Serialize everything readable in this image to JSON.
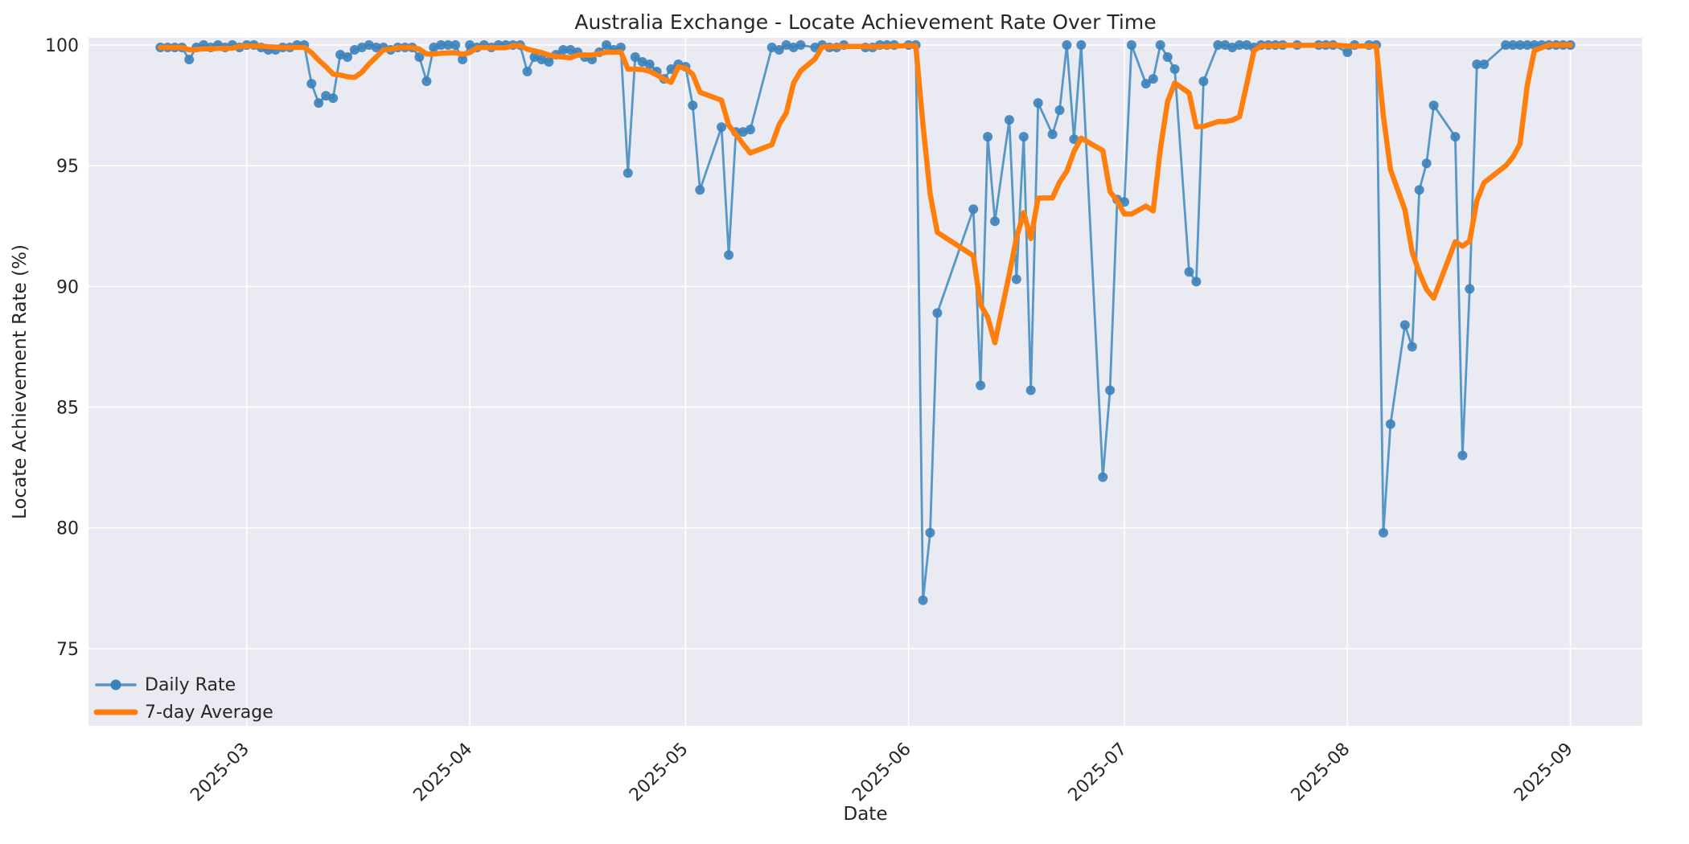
{
  "title": "Australia Exchange - Locate Achievement Rate Over Time",
  "axes": {
    "xlabel": "Date",
    "ylabel": "Locate Achievement Rate (%)"
  },
  "legend": {
    "position": "lower left",
    "items": [
      {
        "label": "Daily Rate",
        "swatch": "line-with-marker"
      },
      {
        "label": "7-day Average",
        "swatch": "thick-line"
      }
    ]
  },
  "colors": {
    "daily_line": "rgba(31,119,180,0.72)",
    "daily_marker": "#3c82ba",
    "legend_daily": "#5593c8",
    "average_line": "#ff7f0e",
    "axes_background": "#eaeaf2",
    "grid": "#ffffff",
    "text": "#262626"
  },
  "chart_data": {
    "type": "line",
    "title": "Australia Exchange - Locate Achievement Rate Over Time",
    "xlabel": "Date",
    "ylabel": "Locate Achievement Rate (%)",
    "grid": true,
    "legend_position": "lower left",
    "x_ticks": [
      {
        "date": "2025-03-01",
        "label": "2025-03"
      },
      {
        "date": "2025-04-01",
        "label": "2025-04"
      },
      {
        "date": "2025-05-01",
        "label": "2025-05"
      },
      {
        "date": "2025-06-01",
        "label": "2025-06"
      },
      {
        "date": "2025-07-01",
        "label": "2025-07"
      },
      {
        "date": "2025-08-01",
        "label": "2025-08"
      },
      {
        "date": "2025-09-01",
        "label": "2025-09"
      }
    ],
    "y_ticks": [
      75,
      80,
      85,
      90,
      95,
      100
    ],
    "ylim": [
      71.8,
      100.3
    ],
    "xlim": [
      "2025-02-07",
      "2025-09-11"
    ],
    "rolling_window": 7,
    "series": [
      {
        "name": "Daily Rate",
        "style": "line+markers",
        "points": [
          [
            "2025-02-17",
            99.9
          ],
          [
            "2025-02-18",
            99.9
          ],
          [
            "2025-02-19",
            99.9
          ],
          [
            "2025-02-20",
            99.9
          ],
          [
            "2025-02-21",
            99.4
          ],
          [
            "2025-02-22",
            99.9
          ],
          [
            "2025-02-23",
            100
          ],
          [
            "2025-02-24",
            99.9
          ],
          [
            "2025-02-25",
            100
          ],
          [
            "2025-02-26",
            99.9
          ],
          [
            "2025-02-27",
            100
          ],
          [
            "2025-02-28",
            99.9
          ],
          [
            "2025-03-01",
            100
          ],
          [
            "2025-03-02",
            100
          ],
          [
            "2025-03-03",
            99.9
          ],
          [
            "2025-03-04",
            99.8
          ],
          [
            "2025-03-05",
            99.8
          ],
          [
            "2025-03-06",
            99.9
          ],
          [
            "2025-03-07",
            99.9
          ],
          [
            "2025-03-08",
            100
          ],
          [
            "2025-03-09",
            100
          ],
          [
            "2025-03-10",
            98.4
          ],
          [
            "2025-03-11",
            97.6
          ],
          [
            "2025-03-12",
            97.9
          ],
          [
            "2025-03-13",
            97.8
          ],
          [
            "2025-03-14",
            99.6
          ],
          [
            "2025-03-15",
            99.5
          ],
          [
            "2025-03-16",
            99.8
          ],
          [
            "2025-03-17",
            99.9
          ],
          [
            "2025-03-18",
            100
          ],
          [
            "2025-03-19",
            99.9
          ],
          [
            "2025-03-20",
            99.9
          ],
          [
            "2025-03-21",
            99.8
          ],
          [
            "2025-03-22",
            99.9
          ],
          [
            "2025-03-23",
            99.9
          ],
          [
            "2025-03-24",
            99.9
          ],
          [
            "2025-03-25",
            99.5
          ],
          [
            "2025-03-26",
            98.5
          ],
          [
            "2025-03-27",
            99.9
          ],
          [
            "2025-03-28",
            100
          ],
          [
            "2025-03-29",
            100
          ],
          [
            "2025-03-30",
            100
          ],
          [
            "2025-03-31",
            99.4
          ],
          [
            "2025-04-01",
            100
          ],
          [
            "2025-04-02",
            99.9
          ],
          [
            "2025-04-03",
            100
          ],
          [
            "2025-04-04",
            99.9
          ],
          [
            "2025-04-05",
            100
          ],
          [
            "2025-04-06",
            100
          ],
          [
            "2025-04-07",
            100
          ],
          [
            "2025-04-08",
            100
          ],
          [
            "2025-04-09",
            98.9
          ],
          [
            "2025-04-10",
            99.5
          ],
          [
            "2025-04-11",
            99.4
          ],
          [
            "2025-04-12",
            99.3
          ],
          [
            "2025-04-13",
            99.6
          ],
          [
            "2025-04-14",
            99.8
          ],
          [
            "2025-04-15",
            99.8
          ],
          [
            "2025-04-16",
            99.7
          ],
          [
            "2025-04-17",
            99.5
          ],
          [
            "2025-04-18",
            99.4
          ],
          [
            "2025-04-19",
            99.7
          ],
          [
            "2025-04-20",
            100
          ],
          [
            "2025-04-21",
            99.8
          ],
          [
            "2025-04-22",
            99.9
          ],
          [
            "2025-04-23",
            94.7
          ],
          [
            "2025-04-24",
            99.5
          ],
          [
            "2025-04-25",
            99.3
          ],
          [
            "2025-04-26",
            99.2
          ],
          [
            "2025-04-27",
            98.9
          ],
          [
            "2025-04-28",
            98.6
          ],
          [
            "2025-04-29",
            99.0
          ],
          [
            "2025-04-30",
            99.2
          ],
          [
            "2025-05-01",
            99.1
          ],
          [
            "2025-05-02",
            97.5
          ],
          [
            "2025-05-03",
            94.0
          ],
          [
            "2025-05-06",
            96.6
          ],
          [
            "2025-05-07",
            91.3
          ],
          [
            "2025-05-08",
            96.4
          ],
          [
            "2025-05-09",
            96.4
          ],
          [
            "2025-05-10",
            96.5
          ],
          [
            "2025-05-13",
            99.9
          ],
          [
            "2025-05-14",
            99.8
          ],
          [
            "2025-05-15",
            100
          ],
          [
            "2025-05-16",
            99.9
          ],
          [
            "2025-05-17",
            100
          ],
          [
            "2025-05-19",
            99.9
          ],
          [
            "2025-05-20",
            100
          ],
          [
            "2025-05-21",
            99.9
          ],
          [
            "2025-05-22",
            99.9
          ],
          [
            "2025-05-23",
            100
          ],
          [
            "2025-05-26",
            99.9
          ],
          [
            "2025-05-27",
            99.9
          ],
          [
            "2025-05-28",
            100
          ],
          [
            "2025-05-29",
            100
          ],
          [
            "2025-05-30",
            100
          ],
          [
            "2025-06-01",
            100
          ],
          [
            "2025-06-02",
            100
          ],
          [
            "2025-06-03",
            77.0
          ],
          [
            "2025-06-04",
            79.8
          ],
          [
            "2025-06-05",
            88.9
          ],
          [
            "2025-06-10",
            93.2
          ],
          [
            "2025-06-11",
            85.9
          ],
          [
            "2025-06-12",
            96.2
          ],
          [
            "2025-06-13",
            92.7
          ],
          [
            "2025-06-15",
            96.9
          ],
          [
            "2025-06-16",
            90.3
          ],
          [
            "2025-06-17",
            96.2
          ],
          [
            "2025-06-18",
            85.7
          ],
          [
            "2025-06-19",
            97.6
          ],
          [
            "2025-06-21",
            96.3
          ],
          [
            "2025-06-22",
            97.3
          ],
          [
            "2025-06-23",
            100
          ],
          [
            "2025-06-24",
            96.1
          ],
          [
            "2025-06-25",
            100
          ],
          [
            "2025-06-28",
            82.1
          ],
          [
            "2025-06-29",
            85.7
          ],
          [
            "2025-06-30",
            93.6
          ],
          [
            "2025-07-01",
            93.5
          ],
          [
            "2025-07-02",
            100
          ],
          [
            "2025-07-04",
            98.4
          ],
          [
            "2025-07-05",
            98.6
          ],
          [
            "2025-07-06",
            100
          ],
          [
            "2025-07-07",
            99.5
          ],
          [
            "2025-07-08",
            99.0
          ],
          [
            "2025-07-10",
            90.6
          ],
          [
            "2025-07-11",
            90.2
          ],
          [
            "2025-07-12",
            98.5
          ],
          [
            "2025-07-14",
            100
          ],
          [
            "2025-07-15",
            100
          ],
          [
            "2025-07-16",
            99.9
          ],
          [
            "2025-07-17",
            100
          ],
          [
            "2025-07-18",
            100
          ],
          [
            "2025-07-19",
            99.9
          ],
          [
            "2025-07-20",
            100
          ],
          [
            "2025-07-21",
            100
          ],
          [
            "2025-07-22",
            100
          ],
          [
            "2025-07-23",
            100
          ],
          [
            "2025-07-25",
            100
          ],
          [
            "2025-07-28",
            100
          ],
          [
            "2025-07-29",
            100
          ],
          [
            "2025-07-30",
            100
          ],
          [
            "2025-08-01",
            99.7
          ],
          [
            "2025-08-02",
            100
          ],
          [
            "2025-08-04",
            100
          ],
          [
            "2025-08-05",
            100
          ],
          [
            "2025-08-06",
            79.8
          ],
          [
            "2025-08-07",
            84.3
          ],
          [
            "2025-08-09",
            88.4
          ],
          [
            "2025-08-10",
            87.5
          ],
          [
            "2025-08-11",
            94.0
          ],
          [
            "2025-08-12",
            95.1
          ],
          [
            "2025-08-13",
            97.5
          ],
          [
            "2025-08-16",
            96.2
          ],
          [
            "2025-08-17",
            83.0
          ],
          [
            "2025-08-18",
            89.9
          ],
          [
            "2025-08-19",
            99.2
          ],
          [
            "2025-08-20",
            99.2
          ],
          [
            "2025-08-23",
            100
          ],
          [
            "2025-08-24",
            100
          ],
          [
            "2025-08-25",
            100
          ],
          [
            "2025-08-26",
            100
          ],
          [
            "2025-08-27",
            100
          ],
          [
            "2025-08-28",
            100
          ],
          [
            "2025-08-29",
            100
          ],
          [
            "2025-08-30",
            100
          ],
          [
            "2025-08-31",
            100
          ],
          [
            "2025-09-01",
            100
          ]
        ]
      },
      {
        "name": "7-day Average",
        "style": "thick-line",
        "derived_from": "Daily Rate",
        "derivation": "rolling mean, window 7, min_periods 1"
      }
    ]
  }
}
